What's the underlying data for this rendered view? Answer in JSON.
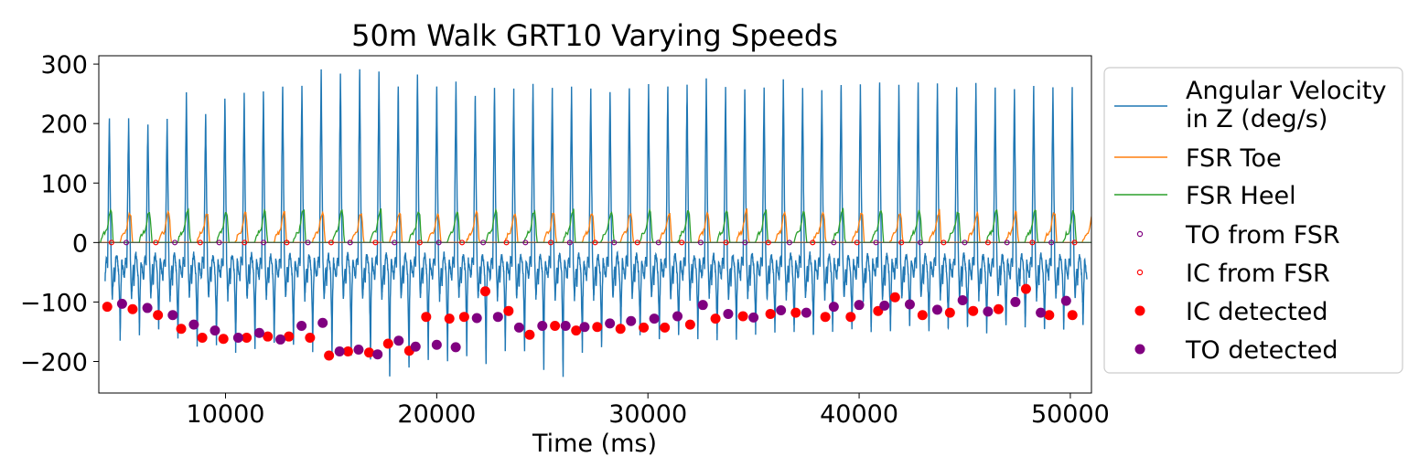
{
  "chart_data": {
    "type": "line",
    "title": "50m Walk GRT10 Varying Speeds",
    "xlabel": "Time (ms)",
    "ylabel": "",
    "xlim": [
      4000,
      51000
    ],
    "ylim": [
      -253,
      314
    ],
    "xticks": [
      10000,
      20000,
      30000,
      40000,
      50000
    ],
    "yticks": [
      -200,
      -100,
      0,
      100,
      200,
      300
    ],
    "grid": false,
    "legend_position": "outside-right",
    "series": [
      {
        "name": "Angular Velocity\n in Z (deg/s)",
        "kind": "line",
        "color": "#1f77b4",
        "step_start_ms": 4300,
        "step_end_ms": 50800,
        "peaks": [
          210,
          205,
          200,
          205,
          250,
          215,
          245,
          250,
          255,
          262,
          268,
          288,
          286,
          288,
          285,
          260,
          285,
          262,
          272,
          250,
          262,
          255,
          268,
          262,
          260,
          262,
          255,
          262,
          262,
          265,
          262,
          272,
          260,
          262,
          262,
          270,
          262,
          255,
          268,
          262,
          270,
          262,
          270,
          270,
          262,
          268,
          262,
          260,
          262,
          262,
          260
        ],
        "troughs": [
          -160,
          -155,
          -150,
          -165,
          -175,
          -170,
          -182,
          -175,
          -172,
          -175,
          -180,
          -188,
          -192,
          -200,
          -230,
          -210,
          -200,
          -195,
          -190,
          -205,
          -185,
          -182,
          -215,
          -225,
          -185,
          -180,
          -150,
          -160,
          -165,
          -160,
          -158,
          -165,
          -160,
          -155,
          -148,
          -150,
          -158,
          -148,
          -145,
          -152,
          -148,
          -145,
          -150,
          -148,
          -145,
          -150,
          -140,
          -145,
          -145,
          -148,
          -140
        ]
      },
      {
        "name": "FSR Toe",
        "kind": "line",
        "color": "#ff7f0e",
        "amplitude": 55
      },
      {
        "name": "FSR Heel",
        "kind": "line",
        "color": "#2ca02c",
        "amplitude": 58
      },
      {
        "name": "TO from FSR",
        "kind": "scatter-hollow",
        "color": "#800080",
        "x": [
          5300,
          7600,
          9700,
          11800,
          13900,
          15900,
          18000,
          20100,
          22200,
          24200,
          26300,
          28400,
          30500,
          32500,
          34600,
          36700,
          38800,
          40800,
          42900,
          45000,
          47000,
          49100
        ]
      },
      {
        "name": "IC from FSR",
        "kind": "scatter-hollow",
        "color": "#ff0000",
        "x": [
          4600,
          6700,
          8800,
          10900,
          12900,
          15000,
          17100,
          19200,
          21200,
          23300,
          25400,
          27500,
          29500,
          31600,
          33700,
          35700,
          37800,
          39900,
          42000,
          44000,
          46100,
          48200,
          50200
        ]
      },
      {
        "name": "IC detected",
        "kind": "scatter",
        "color": "#ff0000",
        "x": [
          4400,
          5600,
          6800,
          7900,
          8900,
          9900,
          11000,
          12000,
          13000,
          14000,
          14900,
          15800,
          16800,
          17700,
          18700,
          19500,
          20600,
          21300,
          22300,
          23400,
          24400,
          25600,
          26600,
          27600,
          28700,
          29800,
          30800,
          32000,
          33200,
          34500,
          35800,
          37000,
          38400,
          39600,
          40900,
          41700,
          43000,
          44300,
          45400,
          46600,
          47900,
          49000,
          50100
        ],
        "y": [
          -108,
          -112,
          -122,
          -145,
          -160,
          -162,
          -160,
          -158,
          -158,
          -160,
          -190,
          -183,
          -185,
          -170,
          -182,
          -125,
          -128,
          -125,
          -82,
          -115,
          -155,
          -140,
          -148,
          -142,
          -145,
          -143,
          -143,
          -138,
          -128,
          -124,
          -120,
          -118,
          -125,
          -125,
          -115,
          -92,
          -122,
          -118,
          -115,
          -112,
          -78,
          -122,
          -122
        ]
      },
      {
        "name": "TO detected",
        "kind": "scatter",
        "color": "#800080",
        "x": [
          5100,
          6300,
          7500,
          8500,
          9500,
          10600,
          11600,
          12600,
          13600,
          14600,
          15400,
          16300,
          17200,
          18200,
          19000,
          20000,
          20900,
          21900,
          22900,
          23900,
          25000,
          26100,
          27000,
          28200,
          29200,
          30300,
          31400,
          32600,
          33800,
          35000,
          36300,
          37500,
          38800,
          40000,
          41200,
          42400,
          43700,
          44900,
          46100,
          47400,
          48600,
          49800
        ],
        "y": [
          -103,
          -110,
          -122,
          -138,
          -148,
          -160,
          -152,
          -163,
          -140,
          -135,
          -183,
          -180,
          -188,
          -165,
          -175,
          -172,
          -176,
          -127,
          -125,
          -143,
          -140,
          -140,
          -142,
          -136,
          -132,
          -128,
          -124,
          -105,
          -120,
          -126,
          -114,
          -118,
          -108,
          -105,
          -106,
          -104,
          -113,
          -97,
          -116,
          -100,
          -118,
          -98
        ]
      }
    ]
  }
}
